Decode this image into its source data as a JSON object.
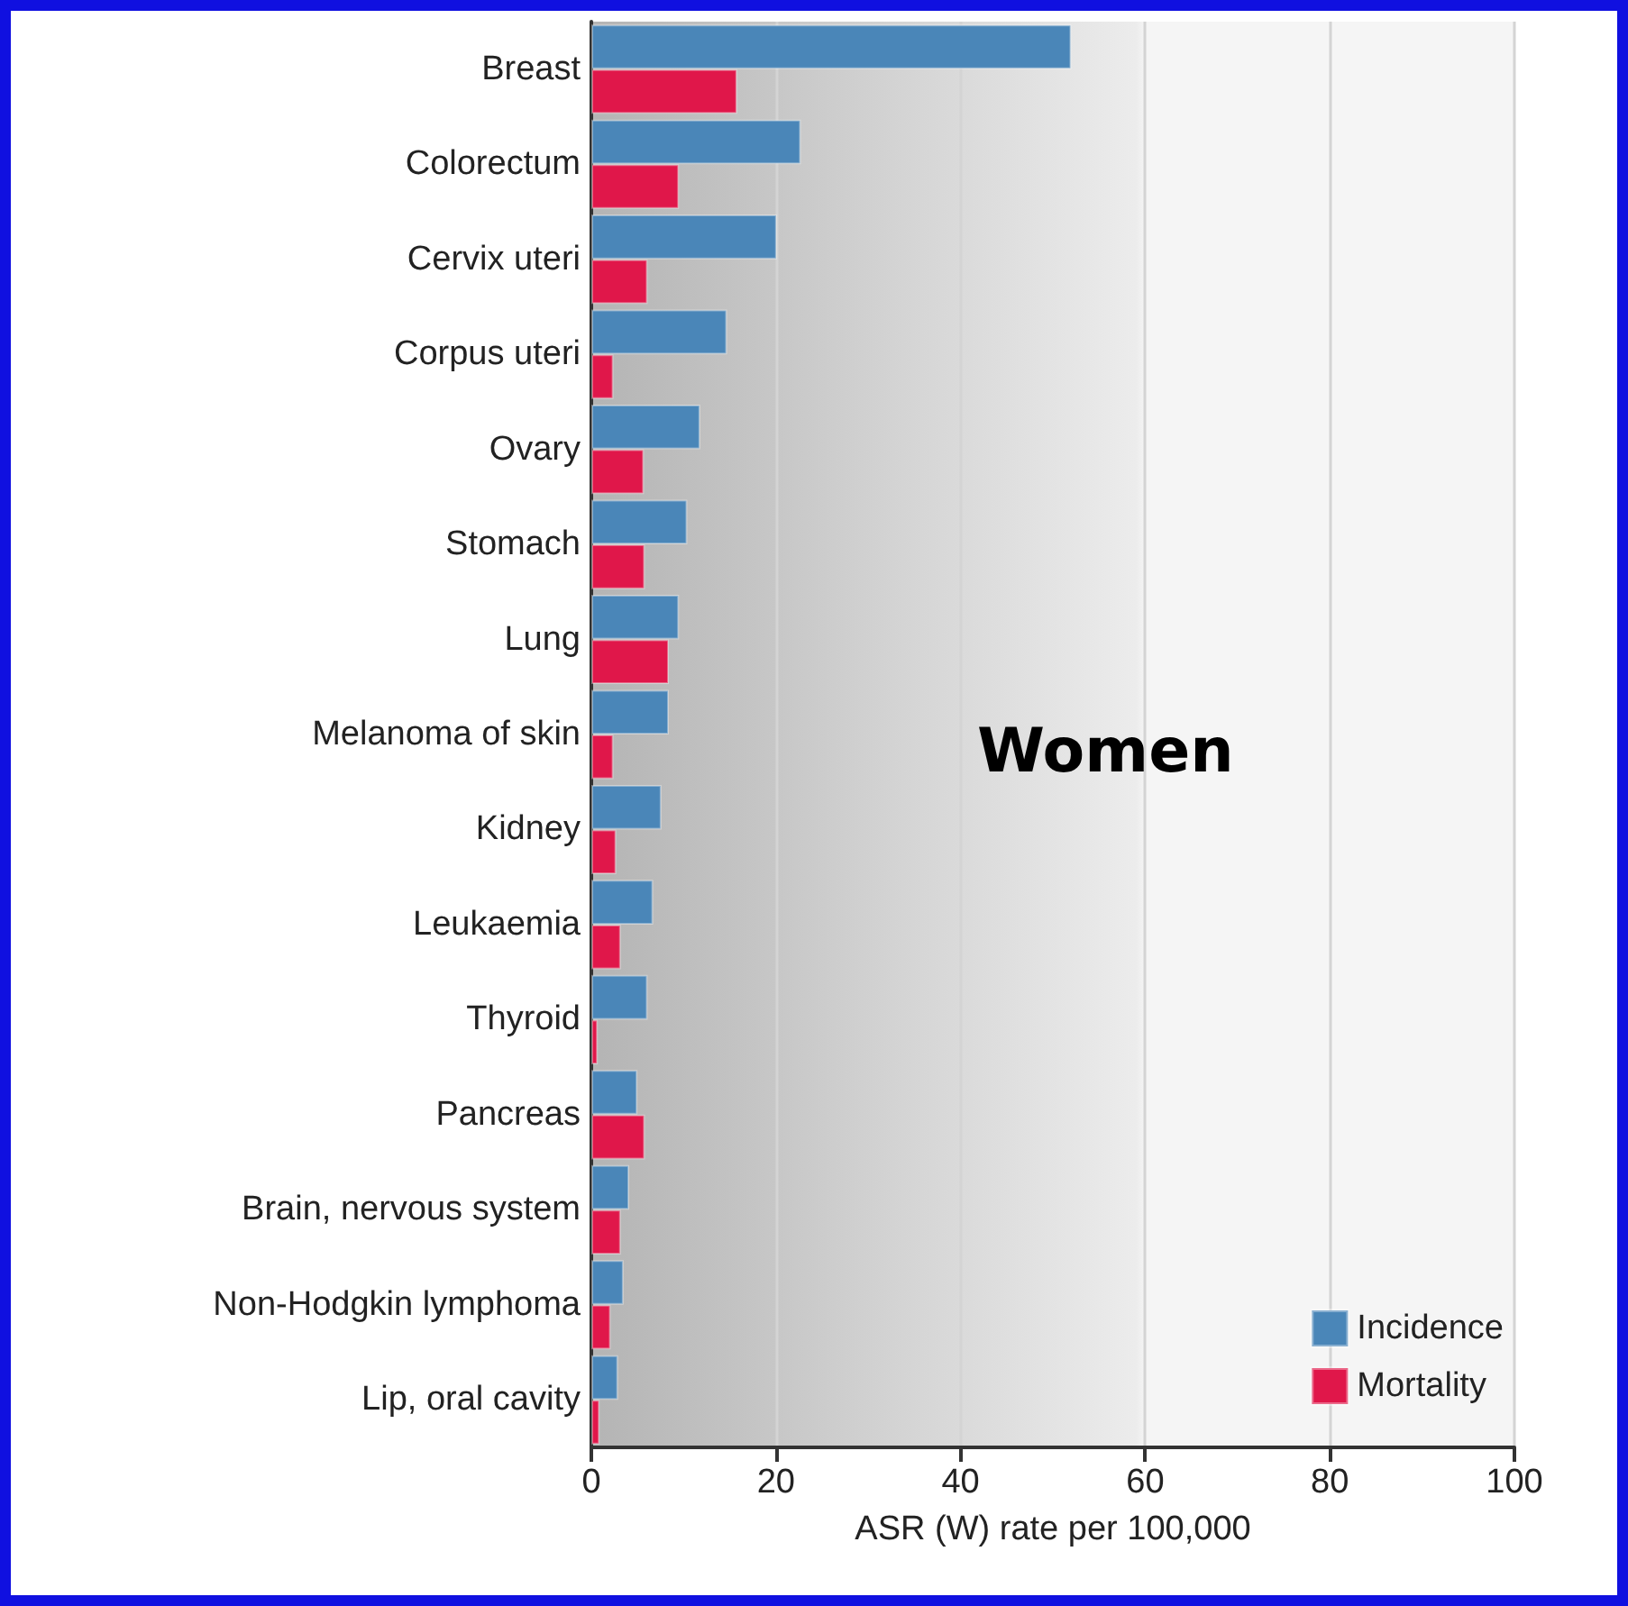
{
  "chart_data": {
    "type": "bar",
    "orientation": "horizontal",
    "title": "Women",
    "xlabel": "ASR (W) rate per 100,000",
    "categories": [
      "Breast",
      "Colorectum",
      "Cervix uteri",
      "Corpus uteri",
      "Ovary",
      "Stomach",
      "Lung",
      "Melanoma of skin",
      "Kidney",
      "Leukaemia",
      "Thyroid",
      "Pancreas",
      "Brain, nervous system",
      "Non-Hodgkin lymphoma",
      "Lip, oral cavity"
    ],
    "series": [
      {
        "name": "Incidence",
        "color": "#4a86b8",
        "values": [
          52,
          22.7,
          20.1,
          14.7,
          11.8,
          10.4,
          9.5,
          8.4,
          7.6,
          6.7,
          6.1,
          5.0,
          4.1,
          3.5,
          2.9
        ]
      },
      {
        "name": "Mortality",
        "color": "#e0174a",
        "values": [
          15.8,
          9.5,
          6.1,
          2.4,
          5.7,
          5.8,
          8.4,
          2.4,
          2.7,
          3.2,
          0.7,
          5.8,
          3.2,
          2.1,
          0.9
        ]
      }
    ],
    "xlim": [
      0,
      100
    ],
    "xticks": [
      0,
      20,
      40,
      60,
      80,
      100
    ],
    "grid": "x",
    "legend": "bottom right"
  }
}
